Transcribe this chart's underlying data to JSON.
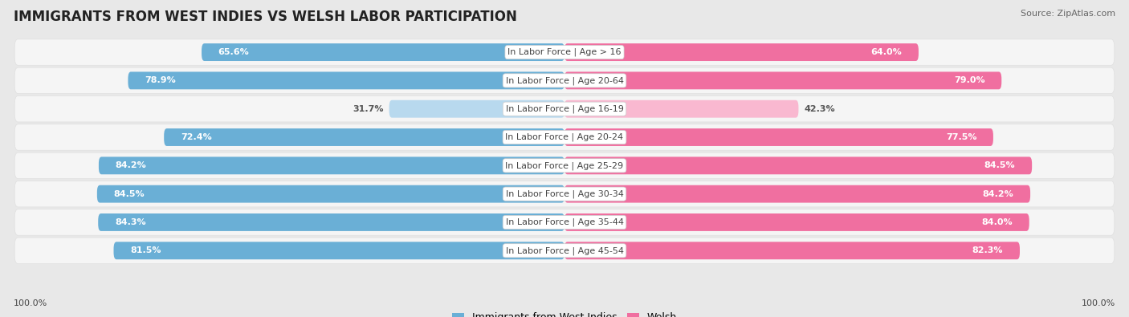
{
  "title": "IMMIGRANTS FROM WEST INDIES VS WELSH LABOR PARTICIPATION",
  "source": "Source: ZipAtlas.com",
  "categories": [
    "In Labor Force | Age > 16",
    "In Labor Force | Age 20-64",
    "In Labor Force | Age 16-19",
    "In Labor Force | Age 20-24",
    "In Labor Force | Age 25-29",
    "In Labor Force | Age 30-34",
    "In Labor Force | Age 35-44",
    "In Labor Force | Age 45-54"
  ],
  "west_indies": [
    65.6,
    78.9,
    31.7,
    72.4,
    84.2,
    84.5,
    84.3,
    81.5
  ],
  "welsh": [
    64.0,
    79.0,
    42.3,
    77.5,
    84.5,
    84.2,
    84.0,
    82.3
  ],
  "west_indies_color": "#6aafd6",
  "welsh_color": "#f06fa0",
  "west_indies_light": "#b8d9ee",
  "welsh_light": "#f9b8d0",
  "bar_height": 0.62,
  "row_bg_color": "#f5f5f5",
  "row_bg_outline": "#e0e0e0",
  "background_color": "#e8e8e8",
  "max_value": 100.0,
  "legend_west_indies": "Immigrants from West Indies",
  "legend_welsh": "Welsh",
  "bottom_left_label": "100.0%",
  "bottom_right_label": "100.0%",
  "title_fontsize": 12,
  "source_fontsize": 8,
  "label_fontsize": 8,
  "cat_fontsize": 8,
  "value_fontsize": 8
}
